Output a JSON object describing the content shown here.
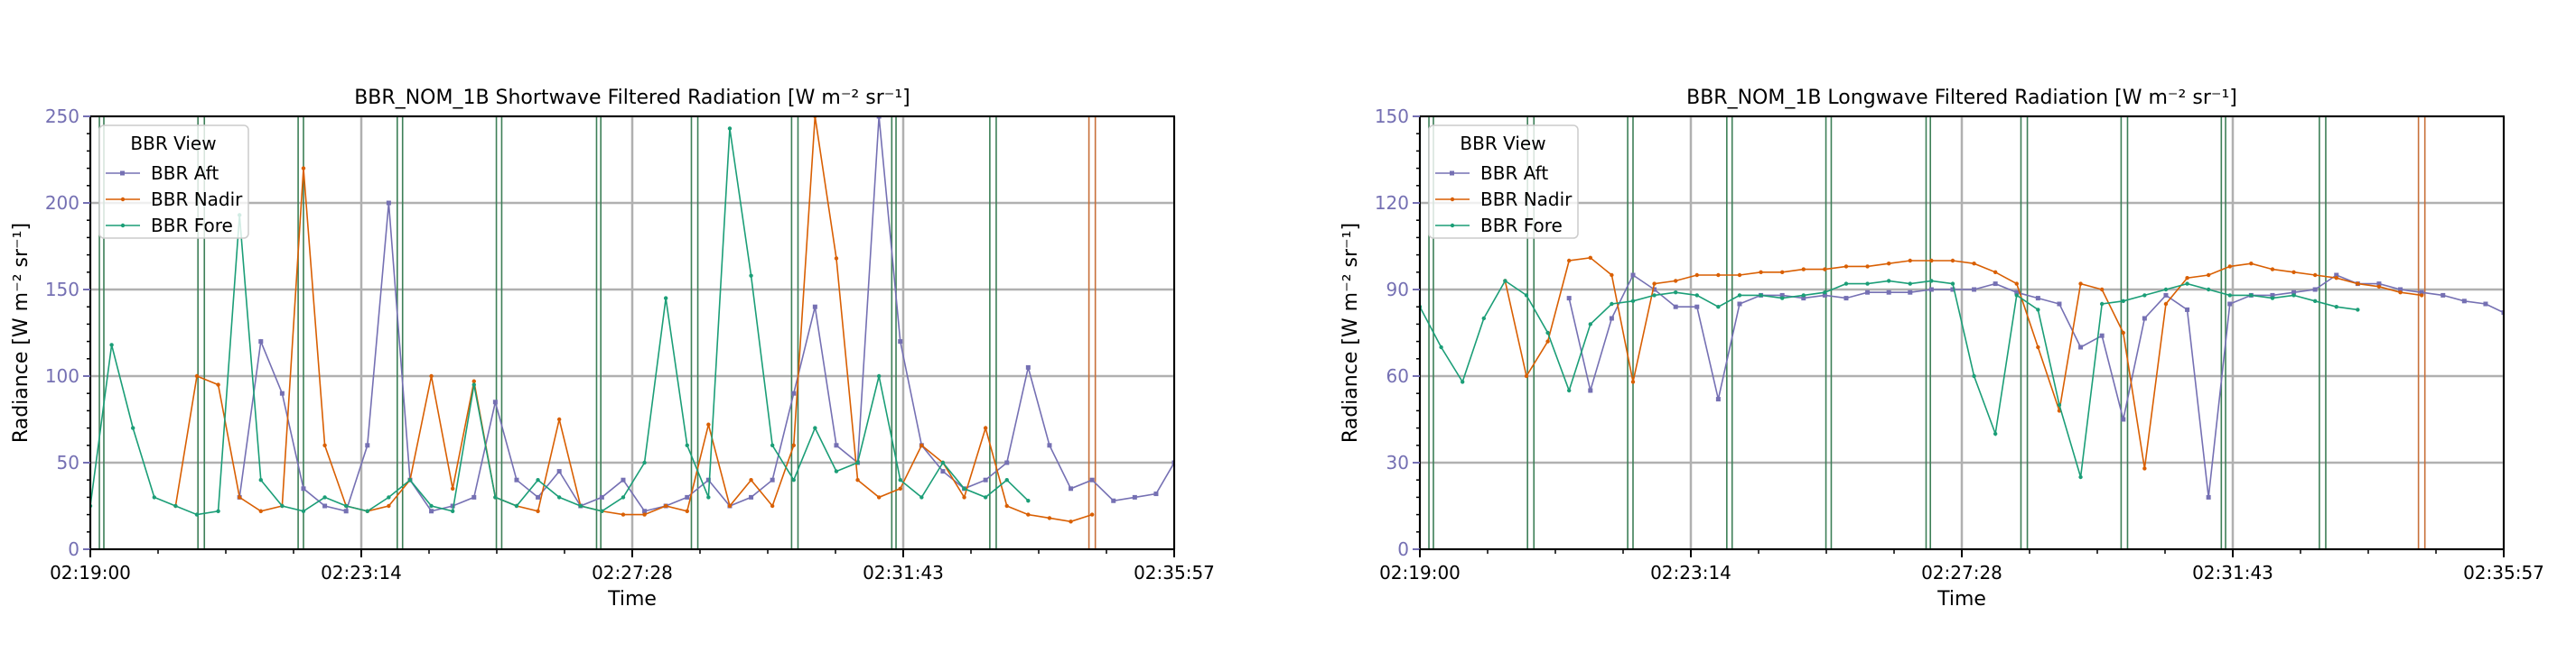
{
  "chart_data": [
    {
      "type": "line",
      "title": "BBR_NOM_1B Shortwave Filtered Radiation [W m⁻² sr⁻¹]",
      "xlabel": "Time",
      "ylabel": "Radiance [W m⁻² sr⁻¹]",
      "xlim_seconds": [
        0,
        1017
      ],
      "x_tick_seconds": [
        0,
        254.25,
        508.5,
        762.75,
        1017
      ],
      "x_tick_labels": [
        "02:19:00",
        "02:23:14",
        "02:27:28",
        "02:31:43",
        "02:35:57"
      ],
      "ylim": [
        0,
        250
      ],
      "y_ticks": [
        0,
        50,
        100,
        150,
        200,
        250
      ],
      "y_tick_labels": [
        "0",
        "50",
        "100",
        "150",
        "200",
        "250"
      ],
      "grid": true,
      "legend": {
        "title": "BBR View",
        "placement": "top-left"
      },
      "x_seconds": [
        0,
        20,
        40,
        60,
        80,
        100,
        120,
        140,
        160,
        180,
        200,
        220,
        240,
        260,
        280,
        300,
        320,
        340,
        360,
        380,
        400,
        420,
        440,
        460,
        480,
        500,
        520,
        540,
        560,
        580,
        600,
        620,
        640,
        660,
        680,
        700,
        720,
        740,
        760,
        780,
        800,
        820,
        840,
        860,
        880,
        900,
        920,
        940,
        960,
        980,
        1000,
        1017
      ],
      "series": [
        {
          "name": "BBR Aft",
          "color": "#7570b3",
          "marker": "square",
          "values": [
            null,
            null,
            null,
            null,
            null,
            null,
            null,
            30,
            120,
            90,
            35,
            25,
            22,
            60,
            200,
            40,
            22,
            25,
            30,
            85,
            40,
            30,
            45,
            25,
            30,
            40,
            22,
            25,
            30,
            40,
            25,
            30,
            40,
            90,
            140,
            60,
            50,
            250,
            120,
            60,
            45,
            35,
            40,
            50,
            105,
            60,
            35,
            40,
            28,
            30,
            32,
            50
          ]
        },
        {
          "name": "BBR Nadir",
          "color": "#d95f02",
          "marker": "circle",
          "values": [
            null,
            null,
            null,
            null,
            25,
            100,
            95,
            30,
            22,
            25,
            220,
            60,
            25,
            22,
            25,
            40,
            100,
            35,
            97,
            30,
            25,
            22,
            75,
            25,
            22,
            20,
            20,
            25,
            22,
            72,
            25,
            40,
            25,
            60,
            250,
            168,
            40,
            30,
            35,
            60,
            50,
            30,
            70,
            25,
            20,
            18,
            16,
            20,
            null,
            null,
            null,
            null
          ]
        },
        {
          "name": "BBR Fore",
          "color": "#1b9e77",
          "marker": "circle",
          "values": [
            25,
            118,
            70,
            30,
            25,
            20,
            22,
            193,
            40,
            25,
            22,
            30,
            25,
            22,
            30,
            40,
            25,
            22,
            95,
            30,
            25,
            40,
            30,
            25,
            22,
            30,
            50,
            145,
            60,
            30,
            243,
            158,
            60,
            40,
            70,
            45,
            50,
            100,
            40,
            30,
            50,
            35,
            30,
            40,
            28,
            null,
            null,
            null,
            null,
            null,
            null,
            null
          ]
        }
      ],
      "full_height_spikes": [
        {
          "series": "BBR Fore",
          "color": "#3d7f57",
          "t_seconds": [
            8.5,
            12.7,
            101,
            107,
            195,
            200,
            288,
            293,
            381,
            386,
            475,
            479,
            564,
            570,
            658,
            664,
            752,
            756,
            844,
            850
          ]
        },
        {
          "series": "BBR Nadir",
          "color": "#c8703a",
          "t_seconds": [
            937,
            943
          ]
        }
      ]
    },
    {
      "type": "line",
      "title": "BBR_NOM_1B Longwave Filtered Radiation [W m⁻² sr⁻¹]",
      "xlabel": "Time",
      "ylabel": "Radiance [W m⁻² sr⁻¹]",
      "xlim_seconds": [
        0,
        1017
      ],
      "x_tick_seconds": [
        0,
        254.25,
        508.5,
        762.75,
        1017
      ],
      "x_tick_labels": [
        "02:19:00",
        "02:23:14",
        "02:27:28",
        "02:31:43",
        "02:35:57"
      ],
      "ylim": [
        0,
        150
      ],
      "y_ticks": [
        0,
        30,
        60,
        90,
        120,
        150
      ],
      "y_tick_labels": [
        "0",
        "30",
        "60",
        "90",
        "120",
        "150"
      ],
      "grid": true,
      "legend": {
        "title": "BBR View",
        "placement": "top-left"
      },
      "x_seconds": [
        0,
        20,
        40,
        60,
        80,
        100,
        120,
        140,
        160,
        180,
        200,
        220,
        240,
        260,
        280,
        300,
        320,
        340,
        360,
        380,
        400,
        420,
        440,
        460,
        480,
        500,
        520,
        540,
        560,
        580,
        600,
        620,
        640,
        660,
        680,
        700,
        720,
        740,
        760,
        780,
        800,
        820,
        840,
        860,
        880,
        900,
        920,
        940,
        960,
        980,
        1000,
        1017
      ],
      "series": [
        {
          "name": "BBR Aft",
          "color": "#7570b3",
          "marker": "square",
          "values": [
            null,
            null,
            null,
            null,
            null,
            null,
            null,
            87,
            55,
            80,
            95,
            90,
            84,
            84,
            52,
            85,
            88,
            88,
            87,
            88,
            87,
            89,
            89,
            89,
            90,
            90,
            90,
            92,
            89,
            87,
            85,
            70,
            74,
            45,
            80,
            88,
            83,
            18,
            85,
            88,
            88,
            89,
            90,
            95,
            92,
            92,
            90,
            89,
            88,
            86,
            85,
            82
          ]
        },
        {
          "name": "BBR Nadir",
          "color": "#d95f02",
          "marker": "circle",
          "values": [
            null,
            null,
            null,
            null,
            93,
            60,
            72,
            100,
            101,
            95,
            58,
            92,
            93,
            95,
            95,
            95,
            96,
            96,
            97,
            97,
            98,
            98,
            99,
            100,
            100,
            100,
            99,
            96,
            92,
            70,
            48,
            92,
            90,
            75,
            28,
            85,
            94,
            95,
            98,
            99,
            97,
            96,
            95,
            94,
            92,
            91,
            89,
            88,
            null,
            null,
            null,
            null
          ]
        },
        {
          "name": "BBR Fore",
          "color": "#1b9e77",
          "marker": "circle",
          "values": [
            84,
            70,
            58,
            80,
            93,
            88,
            75,
            55,
            78,
            85,
            86,
            88,
            89,
            88,
            84,
            88,
            88,
            87,
            88,
            89,
            92,
            92,
            93,
            92,
            93,
            92,
            60,
            40,
            88,
            83,
            50,
            25,
            85,
            86,
            88,
            90,
            92,
            90,
            88,
            88,
            87,
            88,
            86,
            84,
            83,
            null,
            null,
            null,
            null,
            null,
            null,
            null
          ]
        }
      ],
      "full_height_spikes": [
        {
          "series": "BBR Fore",
          "color": "#3d7f57",
          "t_seconds": [
            8.5,
            12.7,
            101,
            107,
            195,
            200,
            288,
            293,
            381,
            386,
            475,
            479,
            564,
            570,
            658,
            664,
            752,
            756,
            844,
            850
          ]
        },
        {
          "series": "BBR Nadir",
          "color": "#c8703a",
          "t_seconds": [
            937,
            943
          ]
        }
      ]
    }
  ]
}
